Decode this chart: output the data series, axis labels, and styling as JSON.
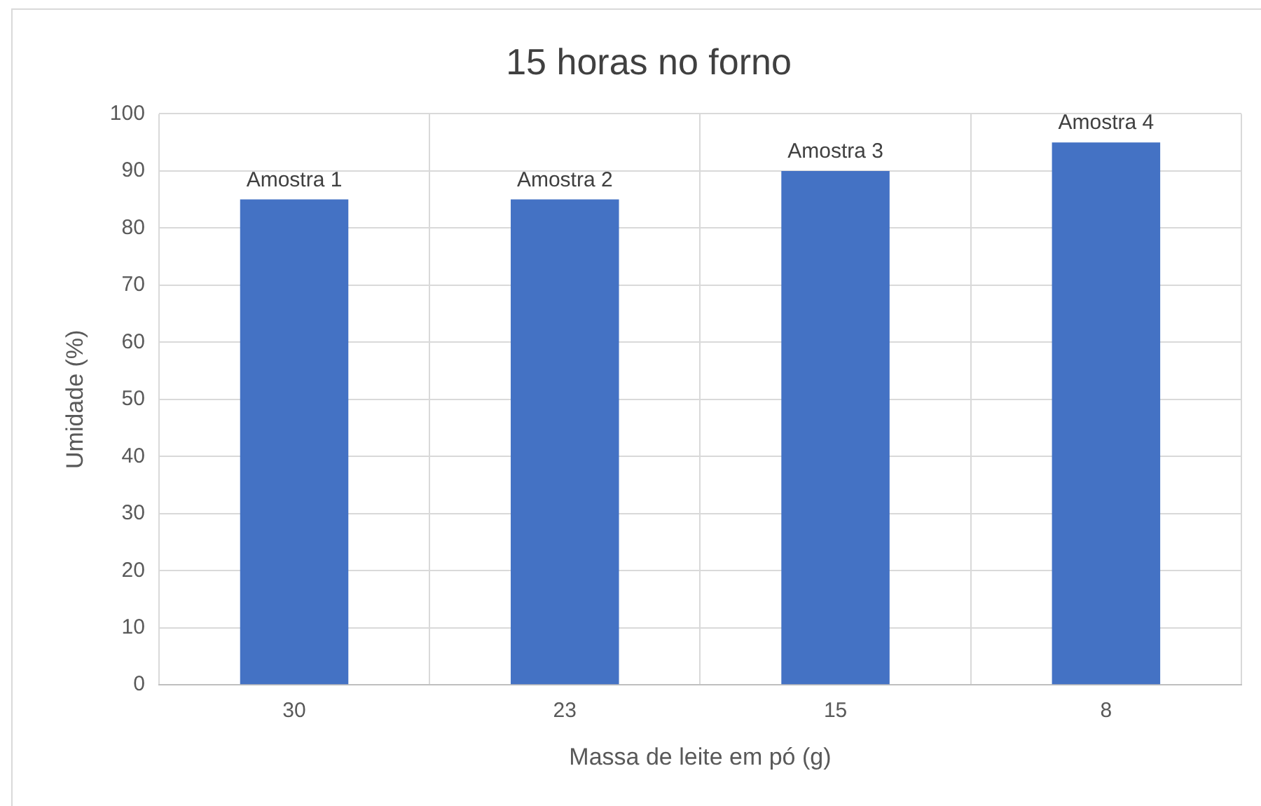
{
  "chart_data": {
    "type": "bar",
    "title": "15 horas no forno",
    "xlabel": "Massa de leite em pó (g)",
    "ylabel": "Umidade (%)",
    "categories": [
      "30",
      "23",
      "15",
      "8"
    ],
    "values": [
      85,
      85,
      90,
      95
    ],
    "color": "#4472c4",
    "ylim": [
      0,
      100
    ],
    "yticks": [
      0,
      10,
      20,
      30,
      40,
      50,
      60,
      70,
      80,
      90,
      100
    ],
    "grid": true,
    "annotations": [
      {
        "text": "Amostra 1",
        "x": "30",
        "y": 85
      },
      {
        "text": "Amostra 2",
        "x": "23",
        "y": 85
      },
      {
        "text": "Amostra 3",
        "x": "15",
        "y": 90
      },
      {
        "text": "Amostra 4",
        "x": "8",
        "y": 95
      }
    ]
  }
}
